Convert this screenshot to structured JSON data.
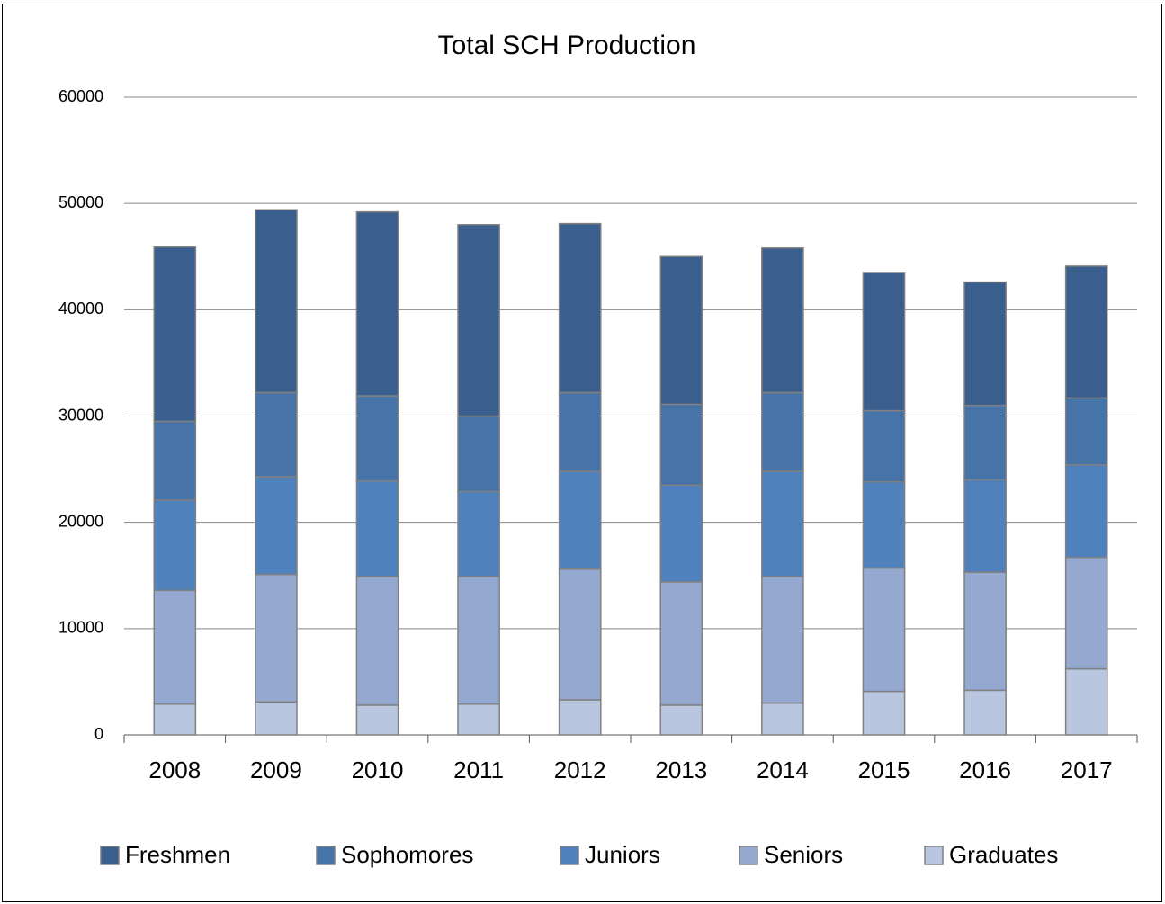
{
  "chart_data": {
    "type": "stacked_bar",
    "title": "Total SCH Production",
    "categories": [
      "2008",
      "2009",
      "2010",
      "2011",
      "2012",
      "2013",
      "2014",
      "2015",
      "2016",
      "2017"
    ],
    "series": [
      {
        "name": "Graduates",
        "color": "#b9c6e0",
        "values": [
          2900,
          3100,
          2800,
          2900,
          3300,
          2800,
          3000,
          4100,
          4200,
          6200
        ]
      },
      {
        "name": "Seniors",
        "color": "#95a9d0",
        "values": [
          10700,
          12000,
          12100,
          12000,
          12300,
          11600,
          11900,
          11600,
          11100,
          10500
        ]
      },
      {
        "name": "Juniors",
        "color": "#4f81bd",
        "values": [
          8500,
          9200,
          9000,
          8000,
          9200,
          9100,
          9900,
          8100,
          8700,
          8700
        ]
      },
      {
        "name": "Sophomores",
        "color": "#4673a8",
        "values": [
          7400,
          7900,
          8000,
          7100,
          7400,
          7600,
          7400,
          6700,
          7000,
          6300
        ]
      },
      {
        "name": "Freshmen",
        "color": "#3a5f8f",
        "values": [
          16400,
          17200,
          17300,
          18000,
          15900,
          13900,
          13600,
          13000,
          11600,
          12400
        ]
      }
    ],
    "ylim": [
      0,
      60000
    ],
    "yticks": [
      0,
      10000,
      20000,
      30000,
      40000,
      50000,
      60000
    ],
    "grid": true,
    "legend": "bottom"
  }
}
